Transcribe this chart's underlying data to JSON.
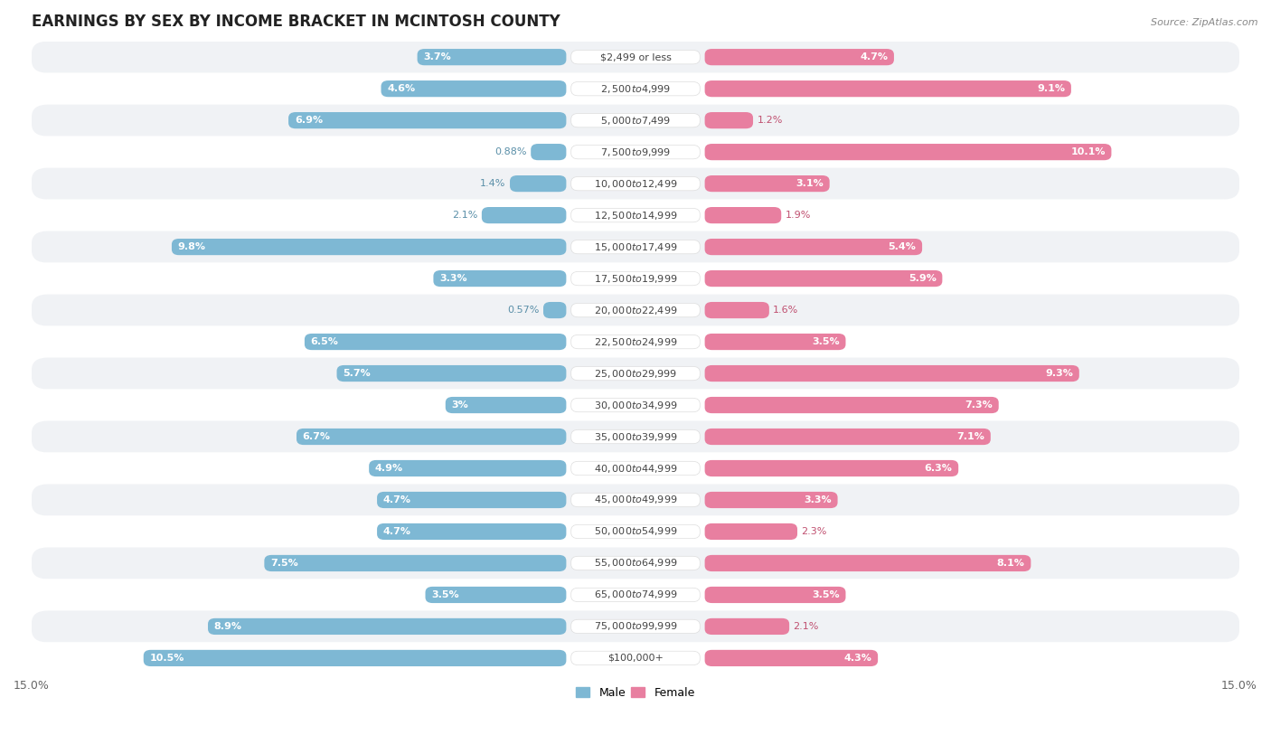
{
  "title": "EARNINGS BY SEX BY INCOME BRACKET IN MCINTOSH COUNTY",
  "source": "Source: ZipAtlas.com",
  "categories": [
    "$2,499 or less",
    "$2,500 to $4,999",
    "$5,000 to $7,499",
    "$7,500 to $9,999",
    "$10,000 to $12,499",
    "$12,500 to $14,999",
    "$15,000 to $17,499",
    "$17,500 to $19,999",
    "$20,000 to $22,499",
    "$22,500 to $24,999",
    "$25,000 to $29,999",
    "$30,000 to $34,999",
    "$35,000 to $39,999",
    "$40,000 to $44,999",
    "$45,000 to $49,999",
    "$50,000 to $54,999",
    "$55,000 to $64,999",
    "$65,000 to $74,999",
    "$75,000 to $99,999",
    "$100,000+"
  ],
  "male_values": [
    3.7,
    4.6,
    6.9,
    0.88,
    1.4,
    2.1,
    9.8,
    3.3,
    0.57,
    6.5,
    5.7,
    3.0,
    6.7,
    4.9,
    4.7,
    4.7,
    7.5,
    3.5,
    8.9,
    10.5
  ],
  "female_values": [
    4.7,
    9.1,
    1.2,
    10.1,
    3.1,
    1.9,
    5.4,
    5.9,
    1.6,
    3.5,
    9.3,
    7.3,
    7.1,
    6.3,
    3.3,
    2.3,
    8.1,
    3.5,
    2.1,
    4.3
  ],
  "male_color": "#7eb8d4",
  "female_color": "#e87fa0",
  "male_label_inside_color": "#ffffff",
  "male_label_outside_color": "#5a8fa8",
  "female_label_inside_color": "#ffffff",
  "female_label_outside_color": "#c05070",
  "row_color_even": "#f0f2f5",
  "row_color_odd": "#ffffff",
  "background_color": "#ffffff",
  "xlim": 15.0,
  "title_fontsize": 12,
  "label_fontsize": 8,
  "category_fontsize": 8,
  "inside_threshold": 2.5
}
